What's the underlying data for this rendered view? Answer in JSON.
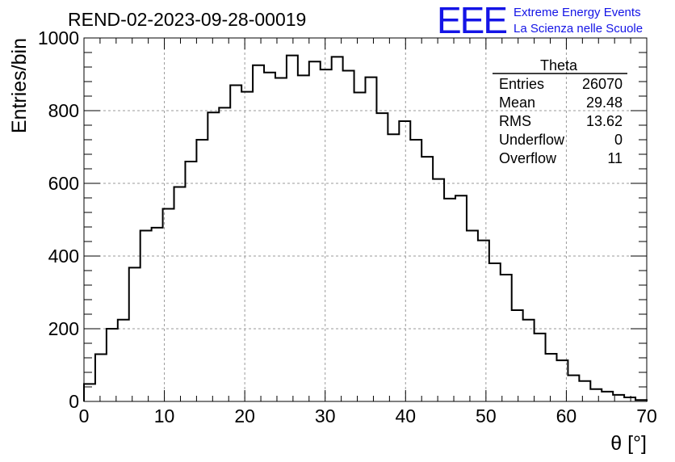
{
  "header": {
    "logo_text": "EEE",
    "logo_line1": "Extreme Energy Events",
    "logo_line2": "La Scienza nelle Scuole",
    "logo_color": "#1414e6"
  },
  "stats": {
    "title": "Theta",
    "rows": [
      {
        "label": "Entries",
        "value": "26070"
      },
      {
        "label": "Mean",
        "value": "29.48"
      },
      {
        "label": "RMS",
        "value": "13.62"
      },
      {
        "label": "Underflow",
        "value": "0"
      },
      {
        "label": "Overflow",
        "value": "11"
      }
    ]
  },
  "chart_data": {
    "type": "histogram",
    "title": "REND-02-2023-09-28-00019",
    "xlabel": "θ [°]",
    "ylabel": "Entries/bin",
    "xlim": [
      0,
      70
    ],
    "ylim": [
      0,
      1000
    ],
    "bin_width": 1.4,
    "x_ticks": [
      0,
      10,
      20,
      30,
      40,
      50,
      60,
      70
    ],
    "y_ticks": [
      0,
      200,
      400,
      600,
      800,
      1000
    ],
    "grid": true,
    "line_color": "#000000",
    "values": [
      48,
      130,
      200,
      225,
      368,
      470,
      478,
      530,
      590,
      660,
      720,
      795,
      808,
      870,
      852,
      925,
      905,
      890,
      952,
      897,
      935,
      913,
      948,
      910,
      850,
      892,
      793,
      735,
      771,
      720,
      673,
      612,
      558,
      566,
      470,
      443,
      380,
      349,
      251,
      225,
      187,
      131,
      113,
      72,
      56,
      34,
      27,
      18,
      11,
      4
    ]
  }
}
